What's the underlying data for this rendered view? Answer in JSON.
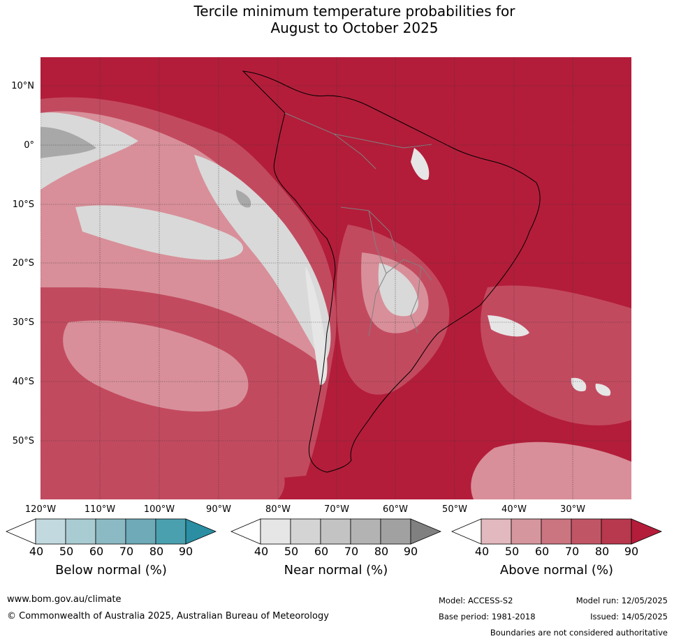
{
  "title_line1": "Tercile minimum temperature probabilities for",
  "title_line2": "August to October 2025",
  "lat_labels": [
    "10°N",
    "0°",
    "10°S",
    "20°S",
    "30°S",
    "40°S",
    "50°S"
  ],
  "lon_labels": [
    "120°W",
    "110°W",
    "100°W",
    "90°W",
    "80°W",
    "70°W",
    "60°W",
    "50°W",
    "40°W",
    "30°W"
  ],
  "colorbars": [
    {
      "title": "Below normal (%)",
      "ticks": [
        "40",
        "50",
        "60",
        "70",
        "80",
        "90"
      ],
      "colors": [
        "#ffffff",
        "#c2d9df",
        "#a9cbd2",
        "#8cbac4",
        "#6eaab7",
        "#4ba0b0",
        "#2b8ea3"
      ]
    },
    {
      "title": "Near normal (%)",
      "ticks": [
        "40",
        "50",
        "60",
        "70",
        "80",
        "90"
      ],
      "colors": [
        "#ffffff",
        "#e6e6e6",
        "#d4d4d4",
        "#c3c3c3",
        "#b3b3b3",
        "#a1a1a1",
        "#808080"
      ]
    },
    {
      "title": "Above normal (%)",
      "ticks": [
        "40",
        "50",
        "60",
        "70",
        "80",
        "90"
      ],
      "colors": [
        "#ffffff",
        "#e2b9be",
        "#d6969e",
        "#ca7580",
        "#c05566",
        "#b8384d",
        "#b31d3a"
      ]
    }
  ],
  "footer": {
    "website": "www.bom.gov.au/climate",
    "copyright": "© Commonwealth of Australia 2025, Australian Bureau of Meteorology",
    "model": "Model: ACCESS-S2",
    "model_run": "Model run: 12/05/2025",
    "base_period": "Base period: 1981-2018",
    "issued": "Issued: 14/05/2025",
    "boundaries_note": "Boundaries are not considered authoritative"
  },
  "colors": {
    "above_max": "#b31d3a",
    "above_mid": "#c24a5f",
    "above_low": "#d88f99",
    "near_low": "#d9d9d9",
    "near_mid": "#c8c8c8",
    "near_high": "#a8a8a8"
  }
}
